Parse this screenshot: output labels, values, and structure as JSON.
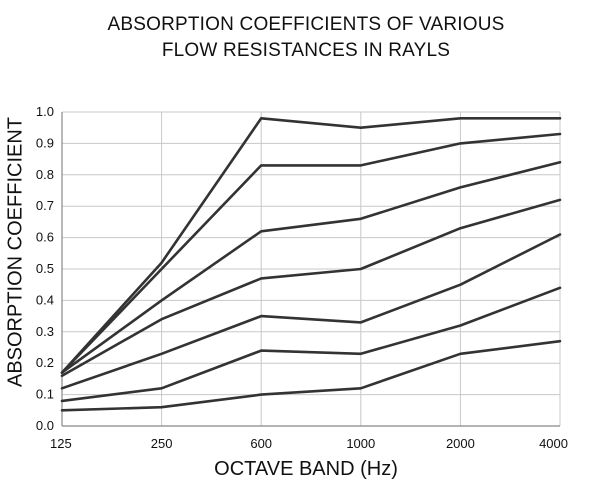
{
  "chart_data": {
    "type": "line",
    "title": "ABSORPTION COEFFICIENTS OF VARIOUS",
    "subtitle": "FLOW RESISTANCES IN RAYLS",
    "xlabel": "OCTAVE BAND (Hz)",
    "ylabel": "ABSORPTION COEFFICIENT",
    "categories": [
      "125",
      "250",
      "600",
      "1000",
      "2000",
      "4000"
    ],
    "ylim": [
      0,
      1.0
    ],
    "yticks": [
      "0.0",
      "0.1",
      "0.2",
      "0.3",
      "0.4",
      "0.5",
      "0.6",
      "0.7",
      "0.8",
      "0.9",
      "1.0"
    ],
    "grid": true,
    "line_color": "#333333",
    "grid_color": "#c8c8c8",
    "series": [
      {
        "values": [
          0.17,
          0.52,
          0.98,
          0.95,
          0.98,
          0.98
        ]
      },
      {
        "values": [
          0.17,
          0.5,
          0.83,
          0.83,
          0.9,
          0.93
        ]
      },
      {
        "values": [
          0.17,
          0.4,
          0.62,
          0.66,
          0.76,
          0.84
        ]
      },
      {
        "values": [
          0.16,
          0.34,
          0.47,
          0.5,
          0.63,
          0.72
        ]
      },
      {
        "values": [
          0.12,
          0.23,
          0.35,
          0.33,
          0.45,
          0.61
        ]
      },
      {
        "values": [
          0.08,
          0.12,
          0.24,
          0.23,
          0.32,
          0.44
        ]
      },
      {
        "values": [
          0.05,
          0.06,
          0.1,
          0.12,
          0.23,
          0.27
        ]
      }
    ]
  }
}
